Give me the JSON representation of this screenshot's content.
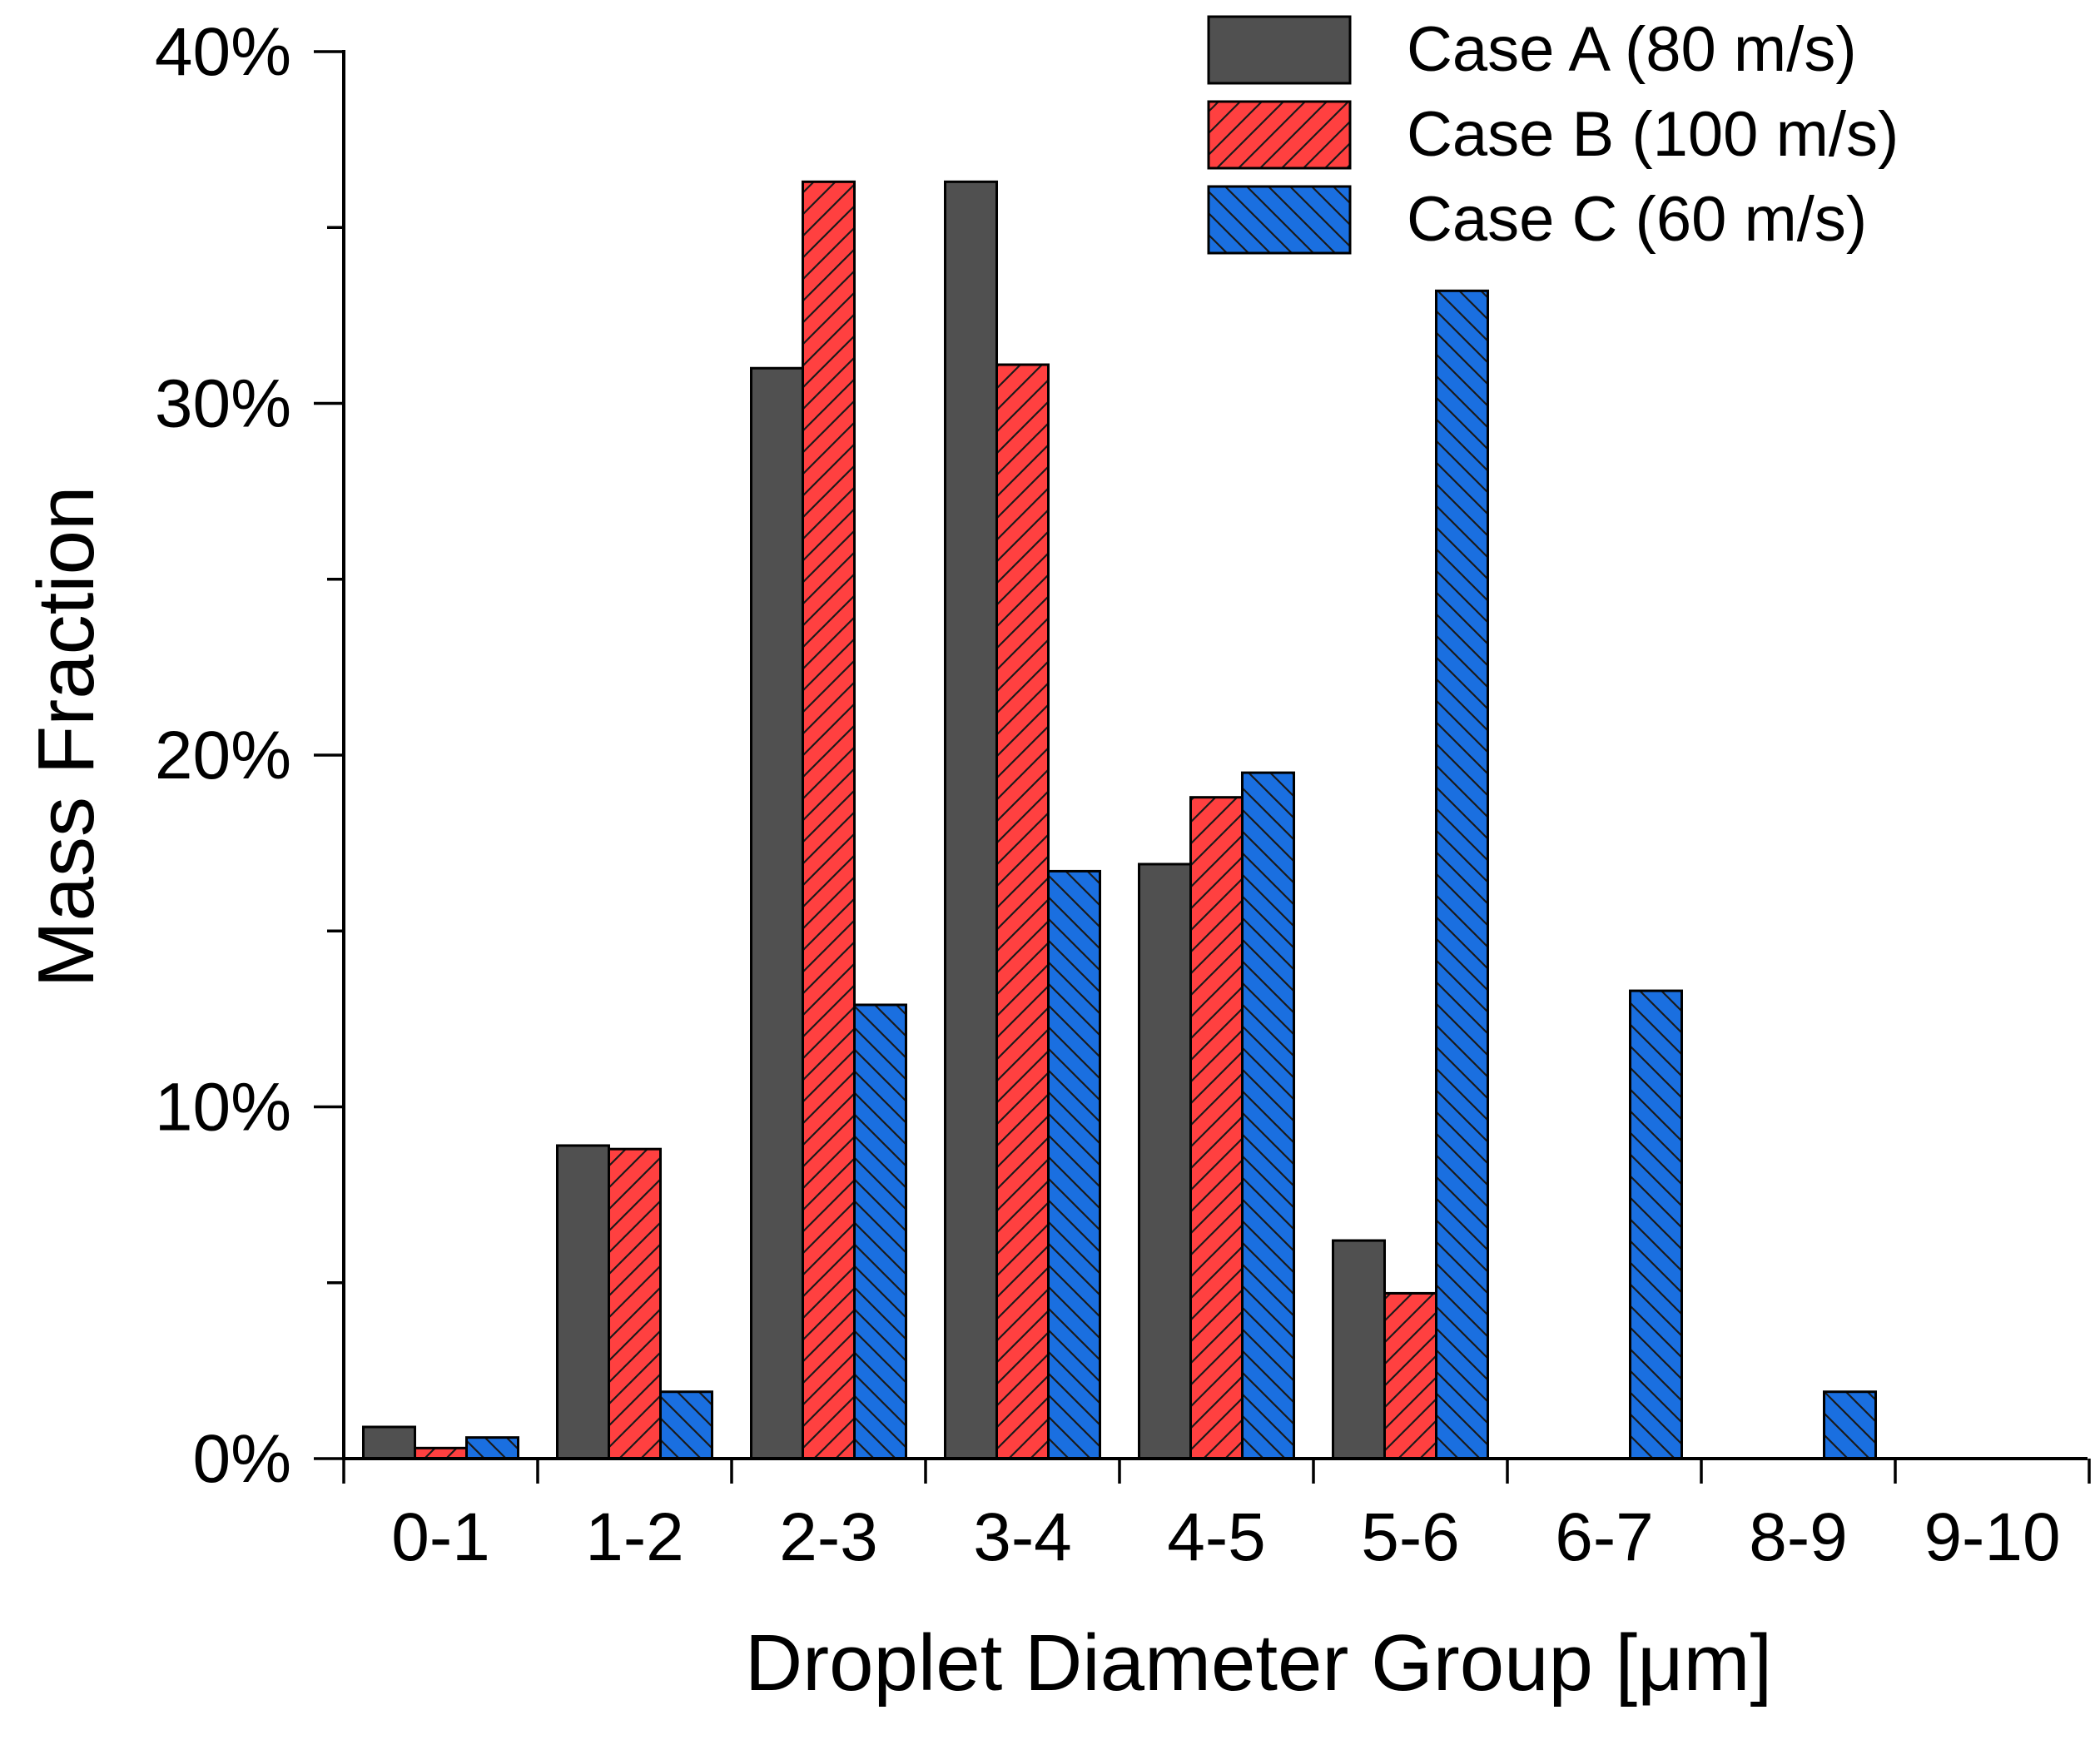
{
  "chart_data": {
    "type": "bar",
    "title": "",
    "xlabel": "Droplet Diameter Group [μm]",
    "ylabel": "Mass Fraction",
    "ylim": [
      0,
      40
    ],
    "yticks": [
      0,
      10,
      20,
      30,
      40
    ],
    "ytick_labels": [
      "0%",
      "10%",
      "20%",
      "30%",
      "40%"
    ],
    "grid": false,
    "legend_position": "top-right",
    "categories": [
      "0-1",
      "1-2",
      "2-3",
      "3-4",
      "4-5",
      "5-6",
      "6-7",
      "8-9",
      "9-10"
    ],
    "series": [
      {
        "name": "Case A (80 m/s)",
        "color": "#505050",
        "pattern": "solid",
        "values": [
          0.9,
          8.9,
          31.0,
          36.3,
          16.9,
          6.2,
          0,
          0,
          0
        ]
      },
      {
        "name": "Case B (100 m/s)",
        "color": "#ff4040",
        "pattern": "forward-hatch",
        "values": [
          0.3,
          8.8,
          36.3,
          31.1,
          18.8,
          4.7,
          0,
          0,
          0
        ]
      },
      {
        "name": "Case C (60 m/s)",
        "color": "#1a6fe0",
        "pattern": "back-hatch",
        "values": [
          0.6,
          1.9,
          12.9,
          16.7,
          19.5,
          33.2,
          13.3,
          1.9,
          0
        ]
      }
    ]
  }
}
